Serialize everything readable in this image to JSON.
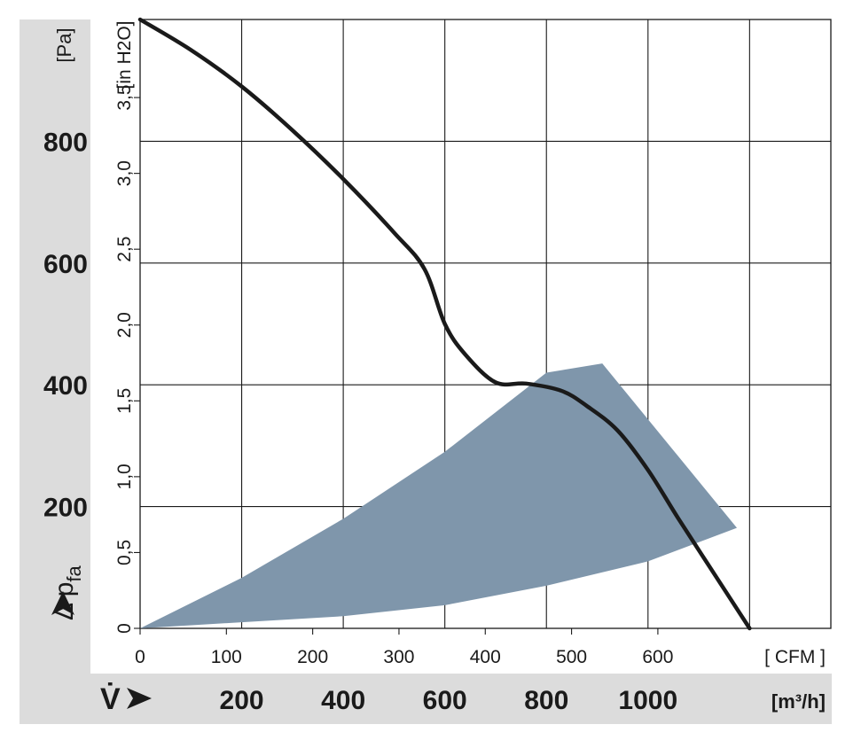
{
  "chart_data": {
    "type": "line",
    "x_axes": {
      "cfm": {
        "unit_label": "[ CFM ]",
        "ticks": [
          0,
          100,
          200,
          300,
          400,
          500,
          600
        ],
        "tick_labels": [
          "0",
          "100",
          "200",
          "300",
          "400",
          "500",
          "600"
        ]
      },
      "m3h": {
        "symbol": "V̇",
        "unit_label": "[m³/h]",
        "ticks": [
          200,
          400,
          600,
          800,
          1000
        ],
        "tick_labels": [
          "200",
          "400",
          "600",
          "800",
          "1000"
        ]
      },
      "range_m3h": [
        0,
        1360
      ]
    },
    "y_axes": {
      "pa": {
        "label": "Δ p",
        "label_sub": "fa",
        "unit_label": "[Pa]",
        "ticks": [
          200,
          400,
          600,
          800
        ],
        "tick_labels": [
          "200",
          "400",
          "600",
          "800"
        ]
      },
      "inh2o": {
        "unit_label": "[in H2O]",
        "ticks": [
          0,
          0.5,
          1.0,
          1.5,
          2.0,
          2.5,
          3.0,
          3.5
        ],
        "tick_labels": [
          "0",
          "0,5",
          "1,0",
          "1,5",
          "2,0",
          "2,5",
          "3,0",
          "3,5"
        ]
      },
      "range_pa": [
        0,
        1000
      ]
    },
    "grid": true,
    "series": [
      {
        "color": "#1a1a1a",
        "x_m3h": [
          0,
          100,
          200,
          300,
          400,
          500,
          560,
          600,
          640,
          700,
          760,
          830,
          880,
          940,
          1000,
          1060,
          1130,
          1200
        ],
        "y_pa": [
          1000,
          950,
          890,
          818,
          738,
          650,
          590,
          500,
          450,
          404,
          402,
          390,
          365,
          325,
          260,
          180,
          90,
          0
        ]
      }
    ],
    "operating_region": {
      "color": "#7f96ab",
      "upper_x_m3h": [
        0,
        200,
        400,
        600,
        800,
        910
      ],
      "upper_y_pa": [
        0,
        83,
        180,
        290,
        420,
        435
      ],
      "right_x_m3h": [
        910,
        1175
      ],
      "right_y_pa": [
        435,
        165
      ],
      "lower_x_m3h": [
        1175,
        1000,
        800,
        600,
        400,
        200,
        0
      ],
      "lower_y_pa": [
        165,
        110,
        70,
        38,
        20,
        10,
        0
      ]
    }
  }
}
